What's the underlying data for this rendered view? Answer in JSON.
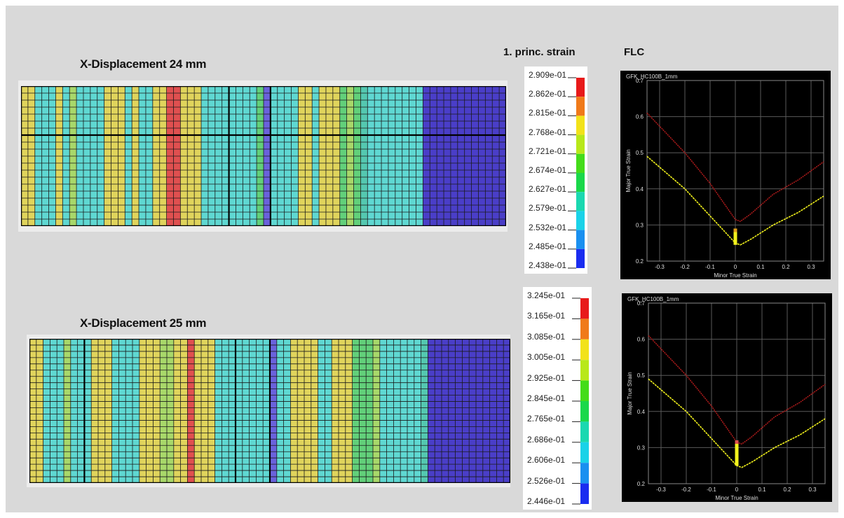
{
  "header": {
    "strain_label": "1. princ. strain",
    "flc_label": "FLC"
  },
  "colors": {
    "yellow": "#e0d45c",
    "cyan": "#5fd8d2",
    "lightgreen": "#a8d86a",
    "green": "#62d07a",
    "teal": "#54c8b0",
    "red": "#e05050",
    "blue": "#6a62dc",
    "darkblue": "#4a3ec8",
    "flc_red": "#aa1a1a",
    "flc_yellow": "#f2f21c"
  },
  "legend_colors": [
    "#e81a1a",
    "#f07a1a",
    "#f2e21a",
    "#b8e81a",
    "#44dc1a",
    "#1ad84a",
    "#1ad8b0",
    "#1ad2e8",
    "#1a90f0",
    "#1a2cf0"
  ],
  "panels": [
    {
      "title": "X-Displacement 24 mm",
      "nx": 70,
      "ny": 20,
      "hlines": [
        7
      ],
      "vlines": [
        30,
        36
      ],
      "bands": [
        [
          0,
          2,
          "yellow"
        ],
        [
          2,
          5,
          "cyan"
        ],
        [
          5,
          6,
          "yellow"
        ],
        [
          6,
          7,
          "cyan"
        ],
        [
          7,
          8,
          "lightgreen"
        ],
        [
          8,
          12,
          "cyan"
        ],
        [
          12,
          15,
          "yellow"
        ],
        [
          15,
          16,
          "cyan"
        ],
        [
          16,
          17,
          "yellow"
        ],
        [
          17,
          19,
          "cyan"
        ],
        [
          19,
          21,
          "yellow"
        ],
        [
          21,
          23,
          "red"
        ],
        [
          23,
          26,
          "yellow"
        ],
        [
          26,
          34,
          "cyan"
        ],
        [
          34,
          35,
          "green"
        ],
        [
          35,
          36,
          "blue"
        ],
        [
          36,
          38,
          "cyan"
        ],
        [
          38,
          40,
          "cyan"
        ],
        [
          40,
          42,
          "yellow"
        ],
        [
          42,
          43,
          "cyan"
        ],
        [
          43,
          46,
          "yellow"
        ],
        [
          46,
          47,
          "green"
        ],
        [
          47,
          48,
          "lightgreen"
        ],
        [
          48,
          49,
          "green"
        ],
        [
          49,
          50,
          "teal"
        ],
        [
          50,
          58,
          "cyan"
        ],
        [
          58,
          70,
          "darkblue"
        ]
      ],
      "legend": {
        "labels": [
          "2.909e-01",
          "2.862e-01",
          "2.815e-01",
          "2.768e-01",
          "2.721e-01",
          "2.674e-01",
          "2.627e-01",
          "2.579e-01",
          "2.532e-01",
          "2.485e-01",
          "2.438e-01"
        ]
      },
      "flc": {
        "chart_type": "line",
        "title": "GFK_HC100B_1mm",
        "xlabel": "Minor True Strain",
        "ylabel": "Major True Strain",
        "xlim": [
          -0.35,
          0.35
        ],
        "ylim": [
          0.2,
          0.7
        ],
        "xticks": [
          -0.3,
          -0.2,
          -0.1,
          0,
          0.1,
          0.2,
          0.3
        ],
        "xtick_labels": [
          "-0.3",
          "-0.2",
          "-0.1",
          "0",
          "0.1",
          "0.2",
          "0.3"
        ],
        "yticks": [
          0.2,
          0.3,
          0.4,
          0.5,
          0.6,
          0.7
        ],
        "ytick_labels": [
          "0.2",
          "0.3",
          "0.4",
          "0.5",
          "0.6",
          "0.7"
        ],
        "series": [
          {
            "color": "flc_red",
            "points": [
              [
                -0.35,
                0.61
              ],
              [
                -0.2,
                0.5
              ],
              [
                -0.1,
                0.415
              ],
              [
                -0.02,
                0.335
              ],
              [
                0.0,
                0.315
              ],
              [
                0.02,
                0.31
              ],
              [
                0.06,
                0.33
              ],
              [
                0.15,
                0.385
              ],
              [
                0.25,
                0.425
              ],
              [
                0.35,
                0.475
              ]
            ]
          },
          {
            "color": "flc_yellow",
            "points": [
              [
                -0.35,
                0.49
              ],
              [
                -0.2,
                0.4
              ],
              [
                -0.1,
                0.325
              ],
              [
                -0.02,
                0.265
              ],
              [
                0.0,
                0.25
              ],
              [
                0.02,
                0.245
              ],
              [
                0.06,
                0.26
              ],
              [
                0.15,
                0.3
              ],
              [
                0.25,
                0.335
              ],
              [
                0.35,
                0.38
              ]
            ]
          }
        ],
        "marker": {
          "x": 0.0,
          "y_from": 0.245,
          "y_to": 0.29,
          "colors": [
            "#f2f21c",
            "#e0a01a"
          ]
        }
      }
    },
    {
      "title": "X-Displacement 25 mm",
      "nx": 70,
      "ny": 23,
      "hlines": [],
      "vlines": [
        8,
        30,
        35
      ],
      "bands": [
        [
          0,
          2,
          "yellow"
        ],
        [
          2,
          5,
          "cyan"
        ],
        [
          5,
          6,
          "lightgreen"
        ],
        [
          6,
          9,
          "cyan"
        ],
        [
          9,
          12,
          "yellow"
        ],
        [
          12,
          16,
          "cyan"
        ],
        [
          16,
          19,
          "yellow"
        ],
        [
          19,
          21,
          "lightgreen"
        ],
        [
          21,
          23,
          "yellow"
        ],
        [
          23,
          24,
          "red"
        ],
        [
          24,
          27,
          "yellow"
        ],
        [
          27,
          35,
          "cyan"
        ],
        [
          35,
          36,
          "blue"
        ],
        [
          36,
          38,
          "cyan"
        ],
        [
          38,
          42,
          "yellow"
        ],
        [
          42,
          44,
          "cyan"
        ],
        [
          44,
          47,
          "yellow"
        ],
        [
          47,
          50,
          "green"
        ],
        [
          50,
          51,
          "lightgreen"
        ],
        [
          51,
          57,
          "cyan"
        ],
        [
          57,
          58,
          "teal"
        ],
        [
          58,
          70,
          "darkblue"
        ]
      ],
      "legend": {
        "labels": [
          "3.245e-01",
          "3.165e-01",
          "3.085e-01",
          "3.005e-01",
          "2.925e-01",
          "2.845e-01",
          "2.765e-01",
          "2.686e-01",
          "2.606e-01",
          "2.526e-01",
          "2.446e-01"
        ]
      },
      "flc": {
        "chart_type": "line",
        "title": "GFK_HC100B_1mm",
        "xlabel": "Minor True Strain",
        "ylabel": "Major True Strain",
        "xlim": [
          -0.35,
          0.35
        ],
        "ylim": [
          0.2,
          0.7
        ],
        "xticks": [
          -0.3,
          -0.2,
          -0.1,
          0,
          0.1,
          0.2,
          0.3
        ],
        "xtick_labels": [
          "-0.3",
          "-0.2",
          "-0.1",
          "0",
          "0.1",
          "0.2",
          "0.3"
        ],
        "yticks": [
          0.2,
          0.3,
          0.4,
          0.5,
          0.6,
          0.7
        ],
        "ytick_labels": [
          "0.2",
          "0.3",
          "0.4",
          "0.5",
          "0.6",
          "0.7"
        ],
        "series": [
          {
            "color": "flc_red",
            "points": [
              [
                -0.35,
                0.61
              ],
              [
                -0.2,
                0.5
              ],
              [
                -0.1,
                0.415
              ],
              [
                -0.02,
                0.335
              ],
              [
                0.0,
                0.315
              ],
              [
                0.02,
                0.31
              ],
              [
                0.06,
                0.33
              ],
              [
                0.15,
                0.385
              ],
              [
                0.25,
                0.425
              ],
              [
                0.35,
                0.475
              ]
            ]
          },
          {
            "color": "flc_yellow",
            "points": [
              [
                -0.35,
                0.49
              ],
              [
                -0.2,
                0.4
              ],
              [
                -0.1,
                0.325
              ],
              [
                -0.02,
                0.265
              ],
              [
                0.0,
                0.25
              ],
              [
                0.02,
                0.245
              ],
              [
                0.06,
                0.26
              ],
              [
                0.15,
                0.3
              ],
              [
                0.25,
                0.335
              ],
              [
                0.35,
                0.38
              ]
            ]
          }
        ],
        "marker": {
          "x": 0.0,
          "y_from": 0.25,
          "y_to": 0.32,
          "colors": [
            "#f2f21c",
            "#e05050"
          ]
        }
      }
    }
  ]
}
